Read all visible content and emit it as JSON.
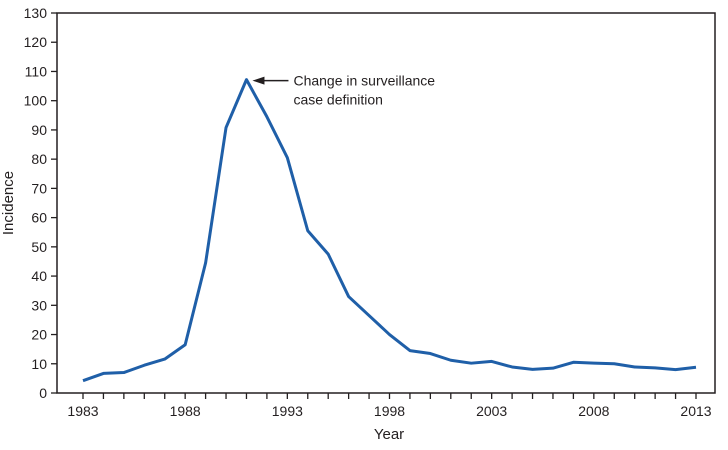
{
  "chart_data": {
    "type": "line",
    "title": "",
    "xlabel": "Year",
    "ylabel": "Incidence",
    "xlim": [
      1983,
      2013
    ],
    "ylim": [
      0,
      130
    ],
    "x_ticks": [
      1983,
      1988,
      1993,
      1998,
      2003,
      2008,
      2013
    ],
    "y_ticks": [
      0,
      10,
      20,
      30,
      40,
      50,
      60,
      70,
      80,
      90,
      100,
      110,
      120,
      130
    ],
    "grid": false,
    "line_color": "#1f5fa8",
    "x": [
      1983,
      1984,
      1985,
      1986,
      1987,
      1988,
      1989,
      1990,
      1991,
      1992,
      1993,
      1994,
      1995,
      1996,
      1997,
      1998,
      1999,
      2000,
      2001,
      2002,
      2003,
      2004,
      2005,
      2006,
      2007,
      2008,
      2009,
      2010,
      2011,
      2012,
      2013
    ],
    "values": [
      4.2,
      6.7,
      7.0,
      9.5,
      11.6,
      16.5,
      44.5,
      90.8,
      107.2,
      94.5,
      80.5,
      55.5,
      47.5,
      33.0,
      26.5,
      20.0,
      14.5,
      13.5,
      11.2,
      10.2,
      10.8,
      8.9,
      8.1,
      8.5,
      10.5,
      10.2,
      10.0,
      8.9,
      8.6,
      8.0,
      8.8
    ],
    "annotation": {
      "text_line1": "Change in surveillance",
      "text_line2": "case definition",
      "x": 1991,
      "y": 107.2
    }
  }
}
